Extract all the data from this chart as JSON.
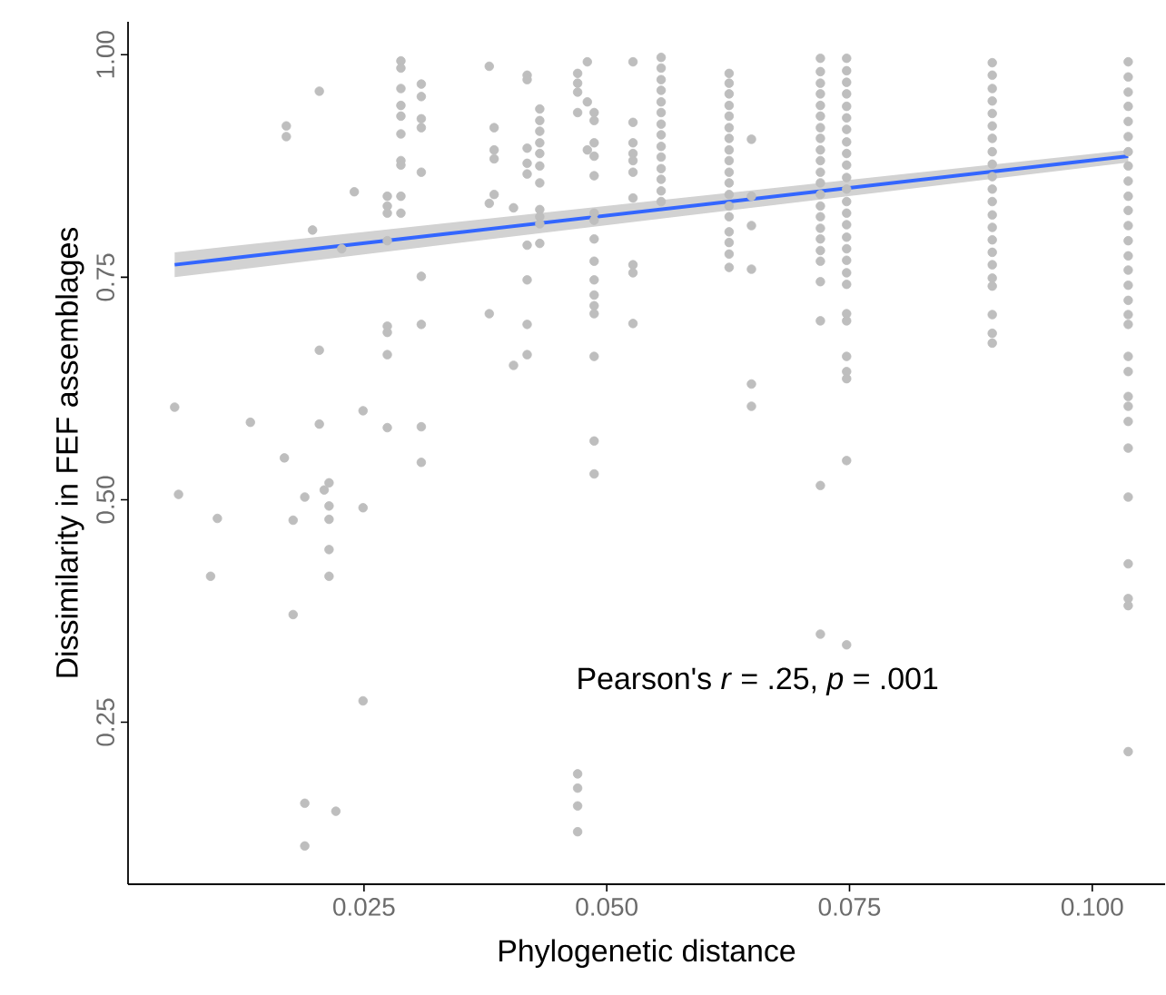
{
  "chart_data": {
    "type": "scatter",
    "xlabel": "Phylogenetic distance",
    "ylabel": "Dissimilarity in FEF assemblages",
    "xlim": [
      0.0007,
      0.1075
    ],
    "ylim": [
      0.068,
      1.037
    ],
    "xticks": [
      0.025,
      {
        "value": 0.05,
        "label": "0.050"
      },
      0.075,
      {
        "value": 0.1,
        "label": "0.100"
      }
    ],
    "yticks": [
      0.25,
      {
        "value": 0.5,
        "label": "0.50"
      },
      0.75,
      {
        "value": 1.0,
        "label": "1.00"
      }
    ],
    "annotations": [
      "Pearson's *r* = .25, *p* = .001"
    ],
    "series": [
      {
        "color": "#bebebe",
        "marker": "circle",
        "x": [
          0.0055,
          0.0059,
          0.0092,
          0.0099,
          0.0133,
          0.0168,
          0.017,
          0.017,
          0.0177,
          0.0177,
          0.0189,
          0.0189,
          0.0189,
          0.0197,
          0.0204,
          0.0204,
          0.0204,
          0.0209,
          0.0214,
          0.0214,
          0.0214,
          0.0214,
          0.0214,
          0.0221,
          0.0227,
          0.024,
          0.0249,
          0.0249,
          0.0249,
          0.0274,
          0.0274,
          0.0274,
          0.0274,
          0.0274,
          0.0274,
          0.0274,
          0.0274,
          0.0288,
          0.0288,
          0.0288,
          0.0288,
          0.0288,
          0.0288,
          0.0288,
          0.0288,
          0.0288,
          0.0288,
          0.0309,
          0.0309,
          0.0309,
          0.0309,
          0.0309,
          0.0309,
          0.0309,
          0.0309,
          0.0309,
          0.0379,
          0.0379,
          0.0379,
          0.0384,
          0.0384,
          0.0384,
          0.0384,
          0.0404,
          0.0404,
          0.0418,
          0.0418,
          0.0418,
          0.0418,
          0.0418,
          0.0418,
          0.0418,
          0.0418,
          0.0418,
          0.0431,
          0.0431,
          0.0431,
          0.0431,
          0.0431,
          0.0431,
          0.0431,
          0.0431,
          0.0431,
          0.0431,
          0.0431,
          0.047,
          0.047,
          0.047,
          0.047,
          0.047,
          0.047,
          0.047,
          0.047,
          0.048,
          0.048,
          0.048,
          0.0487,
          0.0487,
          0.0487,
          0.0487,
          0.0487,
          0.0487,
          0.0487,
          0.0487,
          0.0487,
          0.0487,
          0.0487,
          0.0487,
          0.0487,
          0.0487,
          0.0487,
          0.0487,
          0.0527,
          0.0527,
          0.0527,
          0.0527,
          0.0527,
          0.0527,
          0.0527,
          0.0527,
          0.0527,
          0.0527,
          0.0556,
          0.0556,
          0.0556,
          0.0556,
          0.0556,
          0.0556,
          0.0556,
          0.0556,
          0.0556,
          0.0556,
          0.0556,
          0.0556,
          0.0556,
          0.0556,
          0.0626,
          0.0626,
          0.0626,
          0.0626,
          0.0626,
          0.0626,
          0.0626,
          0.0626,
          0.0626,
          0.0626,
          0.0626,
          0.0626,
          0.0626,
          0.0626,
          0.0626,
          0.0626,
          0.0626,
          0.0626,
          0.0649,
          0.0649,
          0.0649,
          0.0649,
          0.0649,
          0.0649,
          0.072,
          0.072,
          0.072,
          0.072,
          0.072,
          0.072,
          0.072,
          0.072,
          0.072,
          0.072,
          0.072,
          0.072,
          0.072,
          0.072,
          0.072,
          0.072,
          0.072,
          0.072,
          0.072,
          0.072,
          0.072,
          0.072,
          0.072,
          0.0747,
          0.0747,
          0.0747,
          0.0747,
          0.0747,
          0.0747,
          0.0747,
          0.0747,
          0.0747,
          0.0747,
          0.0747,
          0.0747,
          0.0747,
          0.0747,
          0.0747,
          0.0747,
          0.0747,
          0.0747,
          0.0747,
          0.0747,
          0.0747,
          0.0747,
          0.0747,
          0.0747,
          0.0747,
          0.0747,
          0.0747,
          0.0897,
          0.0897,
          0.0897,
          0.0897,
          0.0897,
          0.0897,
          0.0897,
          0.0897,
          0.0897,
          0.0897,
          0.0897,
          0.0897,
          0.0897,
          0.0897,
          0.0897,
          0.0897,
          0.0897,
          0.0897,
          0.0897,
          0.0897,
          0.0897,
          0.0897,
          0.1037,
          0.1037,
          0.1037,
          0.1037,
          0.1037,
          0.1037,
          0.1037,
          0.1037,
          0.1037,
          0.1037,
          0.1037,
          0.1037,
          0.1037,
          0.1037,
          0.1037,
          0.1037,
          0.1037,
          0.1037,
          0.1037,
          0.1037,
          0.1037,
          0.1037,
          0.1037,
          0.1037,
          0.1037,
          0.1037,
          0.1037,
          0.1037,
          0.1037,
          0.1037
        ],
        "values": [
          0.604,
          0.506,
          0.414,
          0.479,
          0.587,
          0.547,
          0.92,
          0.908,
          0.371,
          0.477,
          0.503,
          0.159,
          0.111,
          0.803,
          0.959,
          0.668,
          0.585,
          0.511,
          0.519,
          0.493,
          0.478,
          0.444,
          0.414,
          0.15,
          0.782,
          0.846,
          0.6,
          0.491,
          0.274,
          0.841,
          0.83,
          0.822,
          0.791,
          0.695,
          0.688,
          0.663,
          0.581,
          0.993,
          0.985,
          0.962,
          0.943,
          0.931,
          0.911,
          0.881,
          0.876,
          0.841,
          0.822,
          0.967,
          0.953,
          0.928,
          0.918,
          0.868,
          0.751,
          0.697,
          0.582,
          0.542,
          0.987,
          0.833,
          0.709,
          0.918,
          0.893,
          0.883,
          0.843,
          0.828,
          0.651,
          0.977,
          0.972,
          0.895,
          0.878,
          0.866,
          0.786,
          0.747,
          0.697,
          0.663,
          0.939,
          0.926,
          0.914,
          0.901,
          0.889,
          0.875,
          0.856,
          0.826,
          0.818,
          0.81,
          0.788,
          0.979,
          0.968,
          0.958,
          0.935,
          0.192,
          0.176,
          0.156,
          0.127,
          0.992,
          0.947,
          0.893,
          0.935,
          0.926,
          0.901,
          0.886,
          0.864,
          0.822,
          0.814,
          0.793,
          0.768,
          0.747,
          0.73,
          0.718,
          0.709,
          0.661,
          0.566,
          0.529,
          0.992,
          0.924,
          0.901,
          0.889,
          0.881,
          0.868,
          0.839,
          0.764,
          0.755,
          0.698,
          0.997,
          0.985,
          0.972,
          0.96,
          0.947,
          0.935,
          0.922,
          0.91,
          0.897,
          0.885,
          0.872,
          0.86,
          0.847,
          0.835,
          0.979,
          0.968,
          0.956,
          0.943,
          0.931,
          0.918,
          0.906,
          0.893,
          0.881,
          0.868,
          0.856,
          0.843,
          0.83,
          0.818,
          0.801,
          0.789,
          0.776,
          0.761,
          0.905,
          0.841,
          0.808,
          0.759,
          0.63,
          0.605,
          0.996,
          0.981,
          0.968,
          0.956,
          0.943,
          0.931,
          0.918,
          0.906,
          0.893,
          0.881,
          0.868,
          0.856,
          0.843,
          0.83,
          0.818,
          0.805,
          0.793,
          0.78,
          0.768,
          0.745,
          0.701,
          0.516,
          0.349,
          0.996,
          0.982,
          0.969,
          0.956,
          0.942,
          0.929,
          0.916,
          0.902,
          0.889,
          0.876,
          0.862,
          0.849,
          0.835,
          0.822,
          0.809,
          0.795,
          0.782,
          0.769,
          0.755,
          0.742,
          0.709,
          0.701,
          0.661,
          0.644,
          0.636,
          0.544,
          0.337,
          0.991,
          0.977,
          0.962,
          0.948,
          0.934,
          0.92,
          0.906,
          0.891,
          0.877,
          0.863,
          0.849,
          0.835,
          0.82,
          0.806,
          0.792,
          0.778,
          0.764,
          0.749,
          0.74,
          0.708,
          0.687,
          0.676,
          0.992,
          0.975,
          0.958,
          0.942,
          0.925,
          0.908,
          0.891,
          0.875,
          0.858,
          0.841,
          0.825,
          0.808,
          0.791,
          0.774,
          0.758,
          0.741,
          0.724,
          0.708,
          0.697,
          0.661,
          0.644,
          0.616,
          0.605,
          0.588,
          0.558,
          0.503,
          0.428,
          0.389,
          0.381,
          0.217
        ]
      },
      {
        "type": "line",
        "marker": "none",
        "color": "#3366ff",
        "x": [
          0.0055,
          0.1037
        ],
        "values": [
          0.764,
          0.886
        ],
        "lower": [
          0.75,
          0.879
        ],
        "upper": [
          0.778,
          0.893
        ]
      }
    ]
  }
}
